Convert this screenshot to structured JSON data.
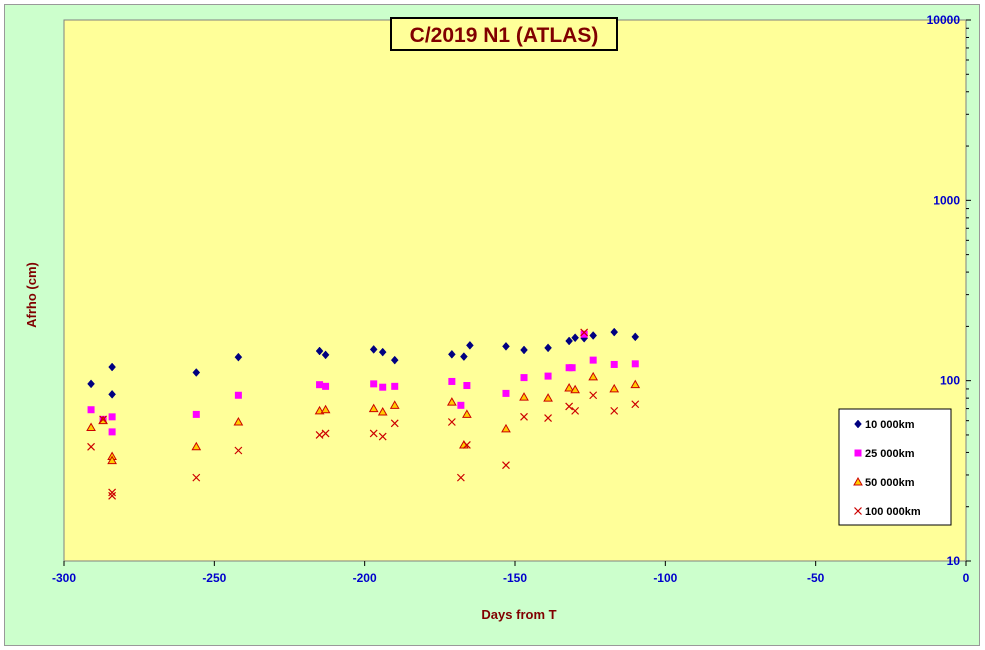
{
  "chart_data": {
    "type": "scatter",
    "title": "C/2019 N1 (ATLAS)",
    "xlabel": "Days from  T",
    "ylabel": "Afrho (cm)",
    "xlim": [
      -300,
      0
    ],
    "ylim": [
      10,
      10000
    ],
    "y_scale": "log",
    "x_ticks": [
      -300,
      -250,
      -200,
      -150,
      -100,
      -50,
      0
    ],
    "y_ticks": [
      10,
      100,
      1000,
      10000
    ],
    "grid": false,
    "legend_position": "bottom-right",
    "colors": {
      "background": "#ccffcc",
      "plot_area": "#ffff99",
      "tick_labels": "#0000cc",
      "axis_titles": "#800000"
    },
    "series": [
      {
        "name": "10 000km",
        "marker": "diamond",
        "color": "#000080",
        "points": [
          [
            -291,
            96
          ],
          [
            -284,
            84
          ],
          [
            -284,
            119
          ],
          [
            -256,
            111
          ],
          [
            -242,
            135
          ],
          [
            -215,
            146
          ],
          [
            -213,
            139
          ],
          [
            -197,
            149
          ],
          [
            -194,
            144
          ],
          [
            -190,
            130
          ],
          [
            -171,
            140
          ],
          [
            -167,
            136
          ],
          [
            -165,
            157
          ],
          [
            -153,
            155
          ],
          [
            -147,
            148
          ],
          [
            -139,
            152
          ],
          [
            -132,
            166
          ],
          [
            -130,
            173
          ],
          [
            -127,
            172
          ],
          [
            -124,
            178
          ],
          [
            -117,
            186
          ],
          [
            -110,
            175
          ]
        ]
      },
      {
        "name": "25 000km",
        "marker": "square",
        "color": "#ff00ff",
        "points": [
          [
            -291,
            69
          ],
          [
            -287,
            61
          ],
          [
            -284,
            63
          ],
          [
            -284,
            52
          ],
          [
            -256,
            65
          ],
          [
            -242,
            83
          ],
          [
            -215,
            95
          ],
          [
            -213,
            93
          ],
          [
            -197,
            96
          ],
          [
            -194,
            92
          ],
          [
            -190,
            93
          ],
          [
            -171,
            99
          ],
          [
            -168,
            73
          ],
          [
            -166,
            94
          ],
          [
            -153,
            85
          ],
          [
            -147,
            104
          ],
          [
            -139,
            106
          ],
          [
            -132,
            118
          ],
          [
            -131,
            118
          ],
          [
            -127,
            181
          ],
          [
            -124,
            130
          ],
          [
            -117,
            123
          ],
          [
            -110,
            124
          ]
        ]
      },
      {
        "name": "50 000km",
        "marker": "triangle",
        "color": "#cc0000",
        "fill": "#ffcc00",
        "points": [
          [
            -291,
            55
          ],
          [
            -287,
            60
          ],
          [
            -284,
            38
          ],
          [
            -284,
            36
          ],
          [
            -256,
            43
          ],
          [
            -242,
            59
          ],
          [
            -215,
            68
          ],
          [
            -213,
            69
          ],
          [
            -197,
            70
          ],
          [
            -194,
            67
          ],
          [
            -190,
            73
          ],
          [
            -171,
            76
          ],
          [
            -167,
            44
          ],
          [
            -166,
            65
          ],
          [
            -153,
            54
          ],
          [
            -147,
            81
          ],
          [
            -139,
            80
          ],
          [
            -132,
            91
          ],
          [
            -130,
            89
          ],
          [
            -124,
            105
          ],
          [
            -117,
            90
          ],
          [
            -110,
            95
          ]
        ]
      },
      {
        "name": "100 000km",
        "marker": "x",
        "color": "#cc0000",
        "points": [
          [
            -291,
            43
          ],
          [
            -287,
            61
          ],
          [
            -284,
            24
          ],
          [
            -284,
            23
          ],
          [
            -256,
            29
          ],
          [
            -242,
            41
          ],
          [
            -215,
            50
          ],
          [
            -213,
            51
          ],
          [
            -197,
            51
          ],
          [
            -194,
            49
          ],
          [
            -190,
            58
          ],
          [
            -171,
            59
          ],
          [
            -168,
            29
          ],
          [
            -166,
            44
          ],
          [
            -153,
            34
          ],
          [
            -147,
            63
          ],
          [
            -139,
            62
          ],
          [
            -132,
            72
          ],
          [
            -130,
            68
          ],
          [
            -127,
            185
          ],
          [
            -124,
            83
          ],
          [
            -117,
            68
          ],
          [
            -110,
            74
          ]
        ]
      }
    ]
  }
}
